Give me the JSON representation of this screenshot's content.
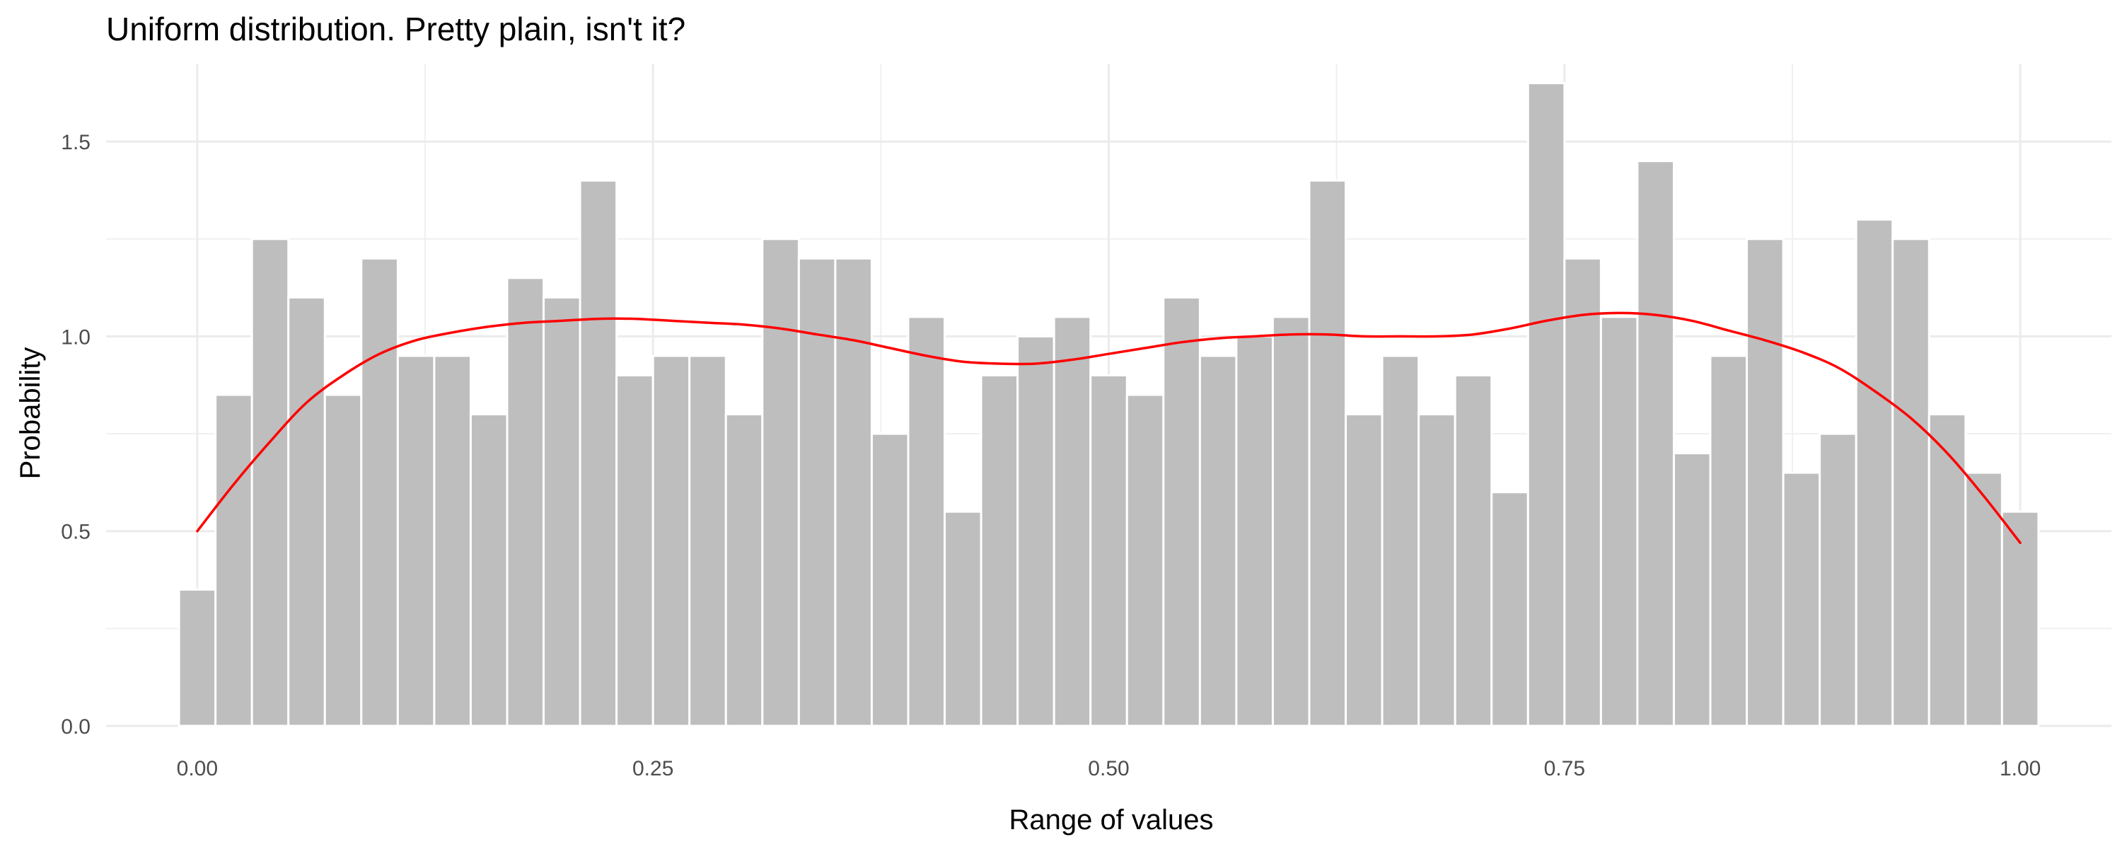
{
  "chart_data": {
    "type": "bar",
    "title": "Uniform distribution. Pretty plain, isn't it?",
    "xlabel": "Range of values",
    "ylabel": "Probability",
    "xlim": [
      -0.05,
      1.05
    ],
    "ylim": [
      0,
      1.7
    ],
    "grid": true,
    "bar_color": "#bebebe",
    "curve_color": "#ff0000",
    "x_ticks": [
      0,
      0.25,
      0.5,
      0.75,
      1
    ],
    "x_tick_labels": [
      "0.00",
      "0.25",
      "0.50",
      "0.75",
      "1.00"
    ],
    "y_ticks": [
      0,
      0.5,
      1,
      1.5
    ],
    "y_tick_labels": [
      "0.0",
      "0.5",
      "1.0",
      "1.5"
    ],
    "bin_width": 0.02,
    "bins_x": [
      0,
      0.02,
      0.04,
      0.06,
      0.08,
      0.1,
      0.12,
      0.14,
      0.16,
      0.18,
      0.2,
      0.22,
      0.24,
      0.26,
      0.28,
      0.3,
      0.32,
      0.34,
      0.36,
      0.38,
      0.4,
      0.42,
      0.44,
      0.46,
      0.48,
      0.5,
      0.52,
      0.54,
      0.56,
      0.58,
      0.6,
      0.62,
      0.64,
      0.66,
      0.68,
      0.7,
      0.72,
      0.74,
      0.76,
      0.78,
      0.8,
      0.82,
      0.84,
      0.86,
      0.88,
      0.9,
      0.92,
      0.94,
      0.96,
      0.98,
      1.0
    ],
    "values": [
      0.35,
      0.85,
      1.25,
      1.1,
      0.85,
      1.2,
      0.95,
      0.95,
      0.8,
      1.15,
      1.1,
      1.4,
      0.9,
      0.95,
      0.95,
      0.8,
      1.25,
      1.2,
      1.2,
      0.75,
      1.05,
      0.55,
      0.9,
      1.0,
      1.05,
      0.9,
      0.85,
      1.1,
      0.95,
      1.0,
      1.05,
      1.4,
      0.8,
      0.95,
      0.8,
      0.9,
      0.6,
      1.65,
      1.2,
      1.05,
      1.45,
      0.7,
      0.95,
      1.25,
      0.65,
      0.75,
      1.3,
      1.25,
      0.8,
      0.65,
      0.55
    ],
    "density_curve": {
      "x": [
        0.0,
        0.02,
        0.04,
        0.06,
        0.08,
        0.1,
        0.12,
        0.14,
        0.16,
        0.18,
        0.2,
        0.22,
        0.24,
        0.26,
        0.28,
        0.3,
        0.32,
        0.34,
        0.36,
        0.38,
        0.4,
        0.42,
        0.44,
        0.46,
        0.48,
        0.5,
        0.52,
        0.54,
        0.56,
        0.58,
        0.6,
        0.62,
        0.64,
        0.66,
        0.68,
        0.7,
        0.72,
        0.74,
        0.76,
        0.78,
        0.8,
        0.82,
        0.84,
        0.86,
        0.88,
        0.9,
        0.92,
        0.94,
        0.96,
        0.98,
        1.0
      ],
      "y": [
        0.5,
        0.62,
        0.73,
        0.83,
        0.9,
        0.955,
        0.99,
        1.01,
        1.025,
        1.035,
        1.04,
        1.045,
        1.045,
        1.04,
        1.035,
        1.03,
        1.02,
        1.005,
        0.99,
        0.97,
        0.95,
        0.935,
        0.93,
        0.93,
        0.94,
        0.955,
        0.97,
        0.985,
        0.995,
        1.0,
        1.005,
        1.005,
        1.0,
        1.0,
        1.0,
        1.005,
        1.02,
        1.04,
        1.055,
        1.06,
        1.055,
        1.04,
        1.015,
        0.99,
        0.96,
        0.92,
        0.86,
        0.79,
        0.7,
        0.59,
        0.47
      ]
    }
  }
}
